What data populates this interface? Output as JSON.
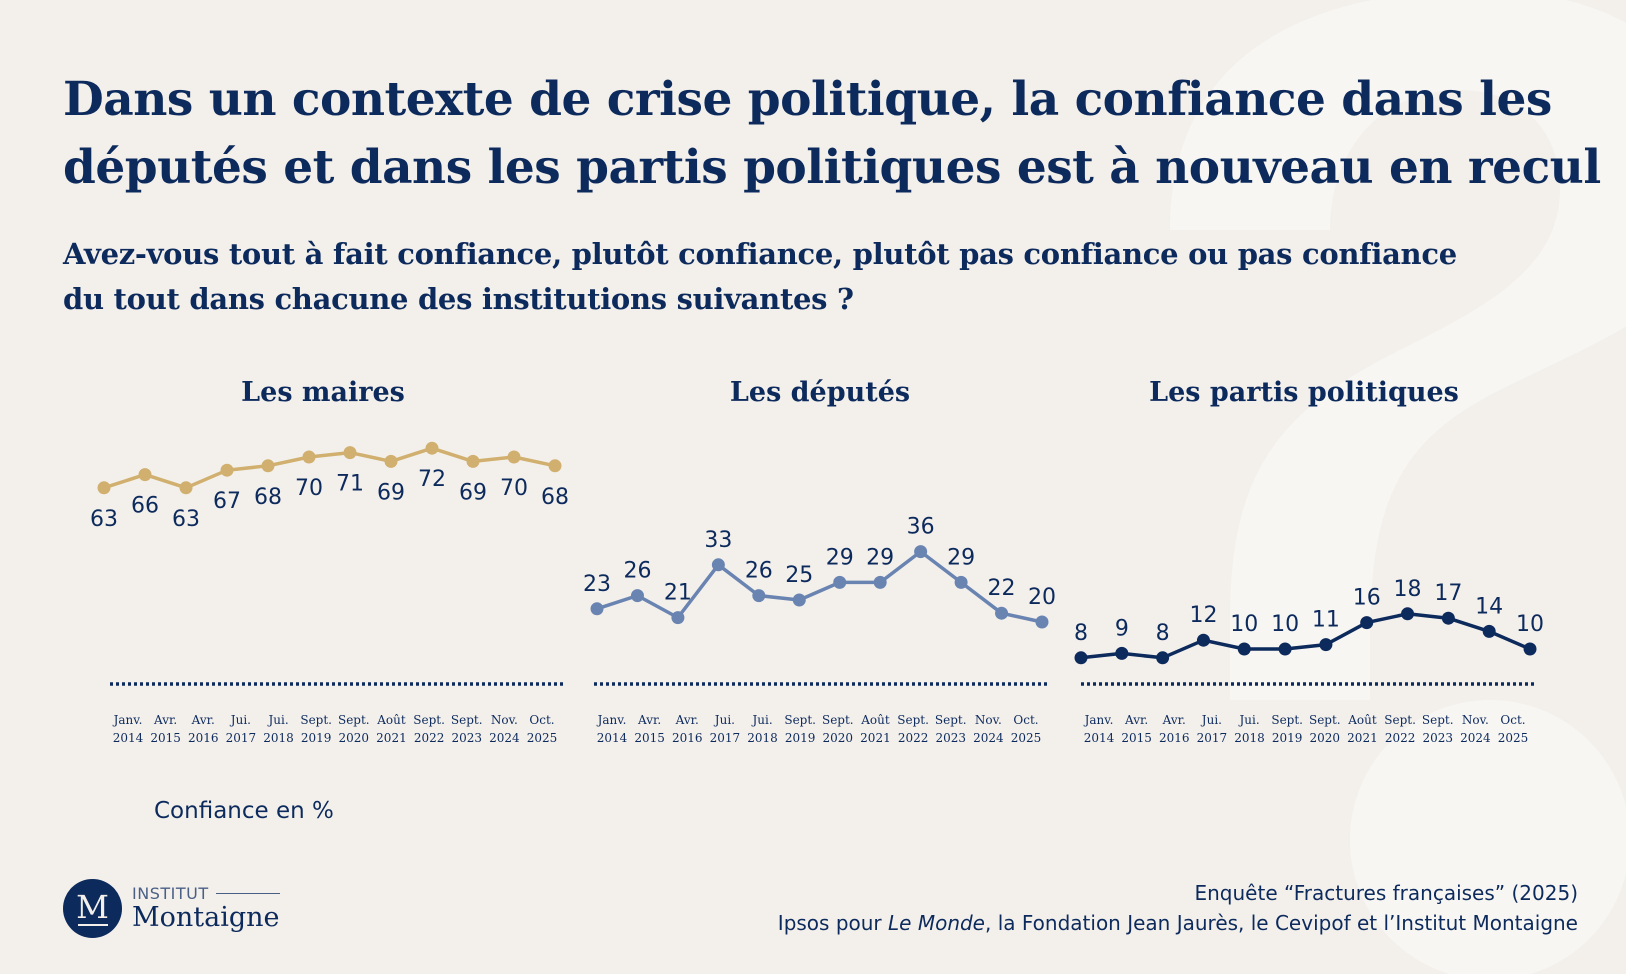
{
  "title": "Dans un contexte de crise politique, la confiance dans les députés et dans les partis politiques est à nouveau en recul",
  "subtitle": "Avez-vous tout à fait confiance, plutôt confiance, plutôt pas confiance ou pas confiance du tout dans chacune des institutions suivantes ?",
  "unit_label": "Confiance en %",
  "logo": {
    "top": "INSTITUT",
    "name": "Montaigne",
    "mark": "M"
  },
  "source": {
    "line1": "Enquête “Fractures françaises” (2025)",
    "line2_prefix": "Ipsos pour ",
    "line2_italic": "Le Monde",
    "line2_suffix": ", la Fondation Jean Jaurès, le Cevipof et l’Institut Montaigne"
  },
  "chart_data": [
    {
      "type": "line",
      "title": "Les maires",
      "color": "#d1b06f",
      "categories": [
        [
          "Janv.",
          "2014"
        ],
        [
          "Avr.",
          "2015"
        ],
        [
          "Avr.",
          "2016"
        ],
        [
          "Jui.",
          "2017"
        ],
        [
          "Jui.",
          "2018"
        ],
        [
          "Sept.",
          "2019"
        ],
        [
          "Sept.",
          "2020"
        ],
        [
          "Août",
          "2021"
        ],
        [
          "Sept.",
          "2022"
        ],
        [
          "Sept.",
          "2023"
        ],
        [
          "Nov.",
          "2024"
        ],
        [
          "Oct.",
          "2025"
        ]
      ],
      "values": [
        63,
        66,
        63,
        67,
        68,
        70,
        71,
        69,
        72,
        69,
        70,
        68
      ],
      "label_position": "below",
      "ylabel": "Confiance en %",
      "grid": false
    },
    {
      "type": "line",
      "title": "Les députés",
      "color": "#6a84b2",
      "categories": [
        [
          "Janv.",
          "2014"
        ],
        [
          "Avr.",
          "2015"
        ],
        [
          "Avr.",
          "2016"
        ],
        [
          "Jui.",
          "2017"
        ],
        [
          "Jui.",
          "2018"
        ],
        [
          "Sept.",
          "2019"
        ],
        [
          "Sept.",
          "2020"
        ],
        [
          "Août",
          "2021"
        ],
        [
          "Sept.",
          "2022"
        ],
        [
          "Sept.",
          "2023"
        ],
        [
          "Nov.",
          "2024"
        ],
        [
          "Oct.",
          "2025"
        ]
      ],
      "values": [
        23,
        26,
        21,
        33,
        26,
        25,
        29,
        29,
        36,
        29,
        22,
        20
      ],
      "label_position": "above",
      "ylabel": "Confiance en %",
      "grid": false
    },
    {
      "type": "line",
      "title": "Les partis politiques",
      "color": "#0d2a5c",
      "categories": [
        [
          "Janv.",
          "2014"
        ],
        [
          "Avr.",
          "2015"
        ],
        [
          "Avr.",
          "2016"
        ],
        [
          "Jui.",
          "2017"
        ],
        [
          "Jui.",
          "2018"
        ],
        [
          "Sept.",
          "2019"
        ],
        [
          "Sept.",
          "2020"
        ],
        [
          "Août",
          "2021"
        ],
        [
          "Sept.",
          "2022"
        ],
        [
          "Sept.",
          "2023"
        ],
        [
          "Nov.",
          "2024"
        ],
        [
          "Oct.",
          "2025"
        ]
      ],
      "values": [
        8,
        9,
        8,
        12,
        10,
        10,
        11,
        16,
        18,
        17,
        14,
        10
      ],
      "label_position": "above",
      "ylabel": "Confiance en %",
      "grid": false
    }
  ]
}
